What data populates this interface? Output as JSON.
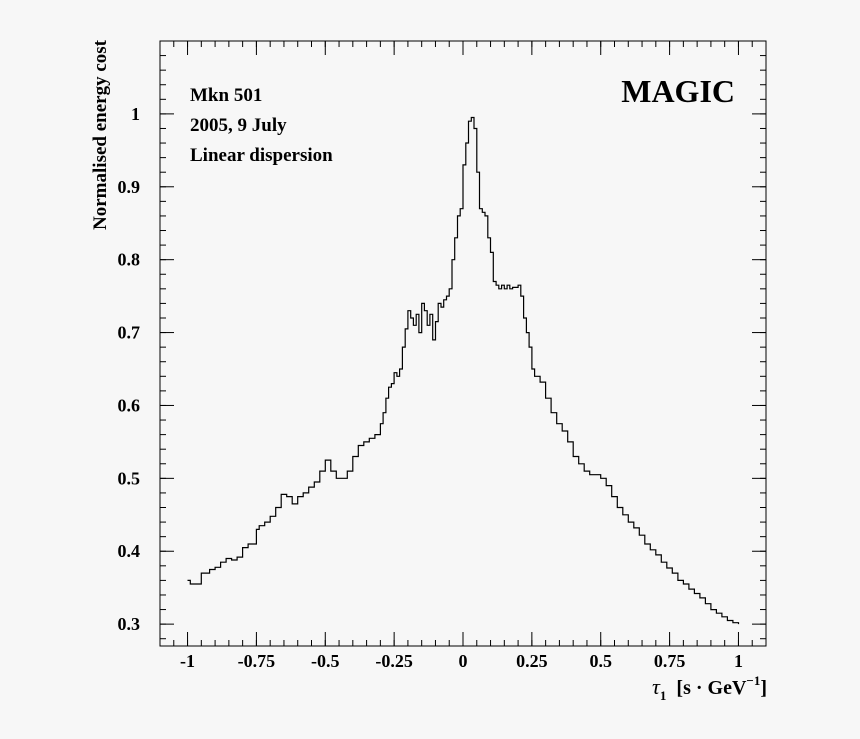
{
  "chart_data": {
    "type": "line",
    "title": "",
    "brand": "MAGIC",
    "annotations": [
      "Mkn 501",
      "2005, 9 July",
      "Linear dispersion"
    ],
    "ylabel": "Normalised energy cost",
    "xlabel": {
      "symbol": "τ",
      "subscript": "1",
      "units_prefix": "[s · GeV",
      "units_exp": "−1",
      "units_suffix": "]"
    },
    "xlim": [
      -1.1,
      1.1
    ],
    "ylim": [
      0.27,
      1.1
    ],
    "x_ticks": [
      -1,
      -0.75,
      -0.5,
      -0.25,
      0,
      0.25,
      0.5,
      0.75,
      1
    ],
    "x_tick_labels": [
      "-1",
      "-0.75",
      "-0.5",
      "-0.25",
      "0",
      "0.25",
      "0.5",
      "0.75",
      "1"
    ],
    "y_ticks": [
      0.3,
      0.4,
      0.5,
      0.6,
      0.7,
      0.8,
      0.9,
      1.0
    ],
    "y_tick_labels": [
      "0.3",
      "0.4",
      "0.5",
      "0.6",
      "0.7",
      "0.8",
      "0.9",
      "1"
    ],
    "grid": false,
    "legend": "none",
    "series": [
      {
        "color": "#000000",
        "x": [
          -1.0,
          -0.99,
          -0.97,
          -0.95,
          -0.92,
          -0.9,
          -0.88,
          -0.86,
          -0.84,
          -0.82,
          -0.8,
          -0.78,
          -0.75,
          -0.74,
          -0.72,
          -0.7,
          -0.68,
          -0.66,
          -0.64,
          -0.62,
          -0.6,
          -0.58,
          -0.56,
          -0.54,
          -0.52,
          -0.5,
          -0.48,
          -0.46,
          -0.44,
          -0.42,
          -0.4,
          -0.38,
          -0.36,
          -0.34,
          -0.32,
          -0.3,
          -0.29,
          -0.28,
          -0.27,
          -0.26,
          -0.25,
          -0.24,
          -0.23,
          -0.22,
          -0.21,
          -0.2,
          -0.19,
          -0.18,
          -0.17,
          -0.16,
          -0.15,
          -0.14,
          -0.13,
          -0.12,
          -0.11,
          -0.1,
          -0.09,
          -0.08,
          -0.07,
          -0.06,
          -0.05,
          -0.04,
          -0.03,
          -0.02,
          -0.01,
          0.0,
          0.01,
          0.02,
          0.03,
          0.04,
          0.05,
          0.06,
          0.07,
          0.08,
          0.09,
          0.1,
          0.11,
          0.12,
          0.13,
          0.14,
          0.15,
          0.16,
          0.17,
          0.18,
          0.19,
          0.2,
          0.21,
          0.22,
          0.23,
          0.24,
          0.25,
          0.26,
          0.27,
          0.28,
          0.3,
          0.32,
          0.34,
          0.36,
          0.38,
          0.4,
          0.42,
          0.44,
          0.46,
          0.48,
          0.5,
          0.52,
          0.54,
          0.56,
          0.58,
          0.6,
          0.62,
          0.64,
          0.66,
          0.68,
          0.7,
          0.72,
          0.74,
          0.76,
          0.78,
          0.8,
          0.82,
          0.84,
          0.86,
          0.88,
          0.9,
          0.92,
          0.94,
          0.96,
          0.98,
          1.0
        ],
        "y": [
          0.36,
          0.355,
          0.355,
          0.37,
          0.375,
          0.378,
          0.385,
          0.39,
          0.388,
          0.392,
          0.405,
          0.41,
          0.43,
          0.435,
          0.44,
          0.448,
          0.46,
          0.478,
          0.475,
          0.465,
          0.475,
          0.48,
          0.488,
          0.495,
          0.51,
          0.525,
          0.51,
          0.5,
          0.5,
          0.51,
          0.53,
          0.545,
          0.55,
          0.555,
          0.56,
          0.575,
          0.59,
          0.61,
          0.625,
          0.63,
          0.645,
          0.64,
          0.65,
          0.68,
          0.705,
          0.73,
          0.72,
          0.71,
          0.725,
          0.7,
          0.74,
          0.73,
          0.71,
          0.725,
          0.69,
          0.715,
          0.74,
          0.735,
          0.745,
          0.75,
          0.76,
          0.8,
          0.83,
          0.86,
          0.87,
          0.93,
          0.96,
          0.99,
          0.995,
          0.98,
          0.92,
          0.87,
          0.865,
          0.86,
          0.83,
          0.81,
          0.77,
          0.765,
          0.76,
          0.765,
          0.76,
          0.765,
          0.76,
          0.762,
          0.762,
          0.765,
          0.75,
          0.72,
          0.7,
          0.68,
          0.65,
          0.64,
          0.64,
          0.632,
          0.61,
          0.59,
          0.575,
          0.565,
          0.55,
          0.53,
          0.52,
          0.51,
          0.505,
          0.505,
          0.5,
          0.49,
          0.475,
          0.46,
          0.45,
          0.44,
          0.432,
          0.422,
          0.41,
          0.402,
          0.395,
          0.385,
          0.377,
          0.37,
          0.36,
          0.355,
          0.348,
          0.342,
          0.336,
          0.328,
          0.32,
          0.315,
          0.31,
          0.305,
          0.302,
          0.3
        ]
      }
    ]
  }
}
